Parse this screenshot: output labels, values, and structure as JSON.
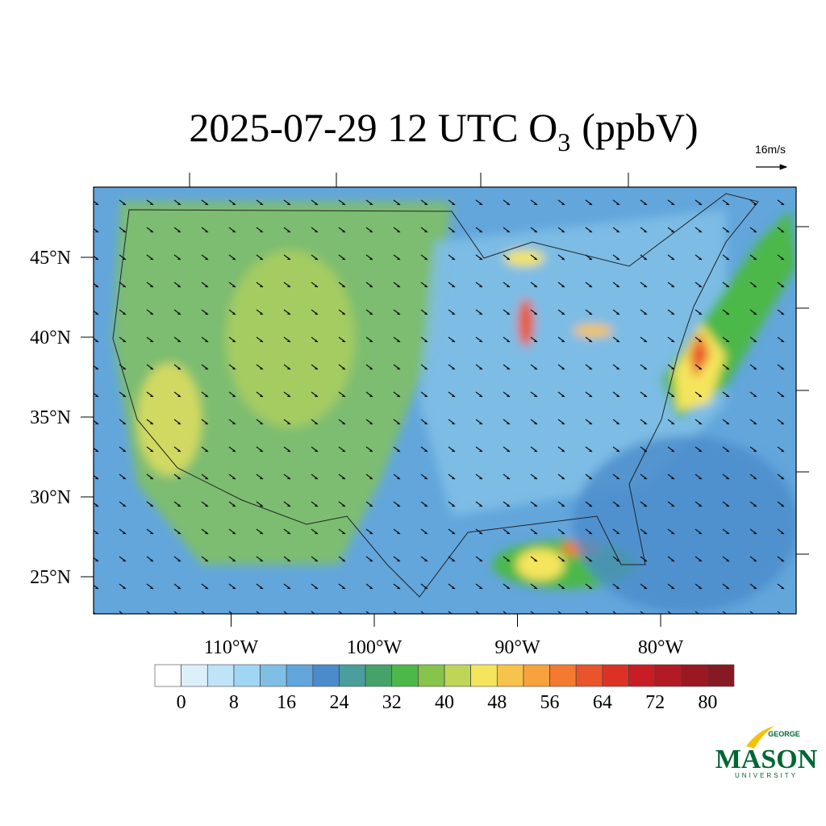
{
  "title_parts": [
    "2025-07-29 12 UTC O",
    "3",
    "(ppbV)"
  ],
  "vector_label": "16m/s",
  "lat_ticks": [
    {
      "value": 45,
      "label": "45°N"
    },
    {
      "value": 40,
      "label": "40°N"
    },
    {
      "value": 35,
      "label": "35°N"
    },
    {
      "value": 30,
      "label": "30°N"
    },
    {
      "value": 25,
      "label": "25°N"
    }
  ],
  "lon_ticks": [
    {
      "value": -110,
      "label": "110°W"
    },
    {
      "value": -100,
      "label": "100°W"
    },
    {
      "value": -90,
      "label": "90°W"
    },
    {
      "value": -80,
      "label": "80°W"
    }
  ],
  "colorbar": {
    "levels": [
      0,
      4,
      8,
      12,
      16,
      20,
      24,
      28,
      32,
      36,
      40,
      44,
      48,
      52,
      56,
      60,
      64,
      68,
      72,
      76,
      80
    ],
    "colors": [
      "#ffffff",
      "#dcf0fa",
      "#bfe3f7",
      "#9fd6f3",
      "#7fbfe6",
      "#62a6dc",
      "#4a8ccb",
      "#4a9e9c",
      "#45a36a",
      "#4cb84a",
      "#86c44c",
      "#bfd557",
      "#f5e55c",
      "#f8c34a",
      "#f7a23c",
      "#f37a30",
      "#e9542b",
      "#dc3226",
      "#c91d25",
      "#b21a24",
      "#9b1823",
      "#861a22"
    ],
    "ticks": [
      0,
      8,
      16,
      24,
      32,
      40,
      48,
      56,
      64,
      72,
      80
    ]
  },
  "logo": {
    "top": "GEORGE",
    "main": "MASON",
    "bottom": "UNIVERSITY"
  }
}
